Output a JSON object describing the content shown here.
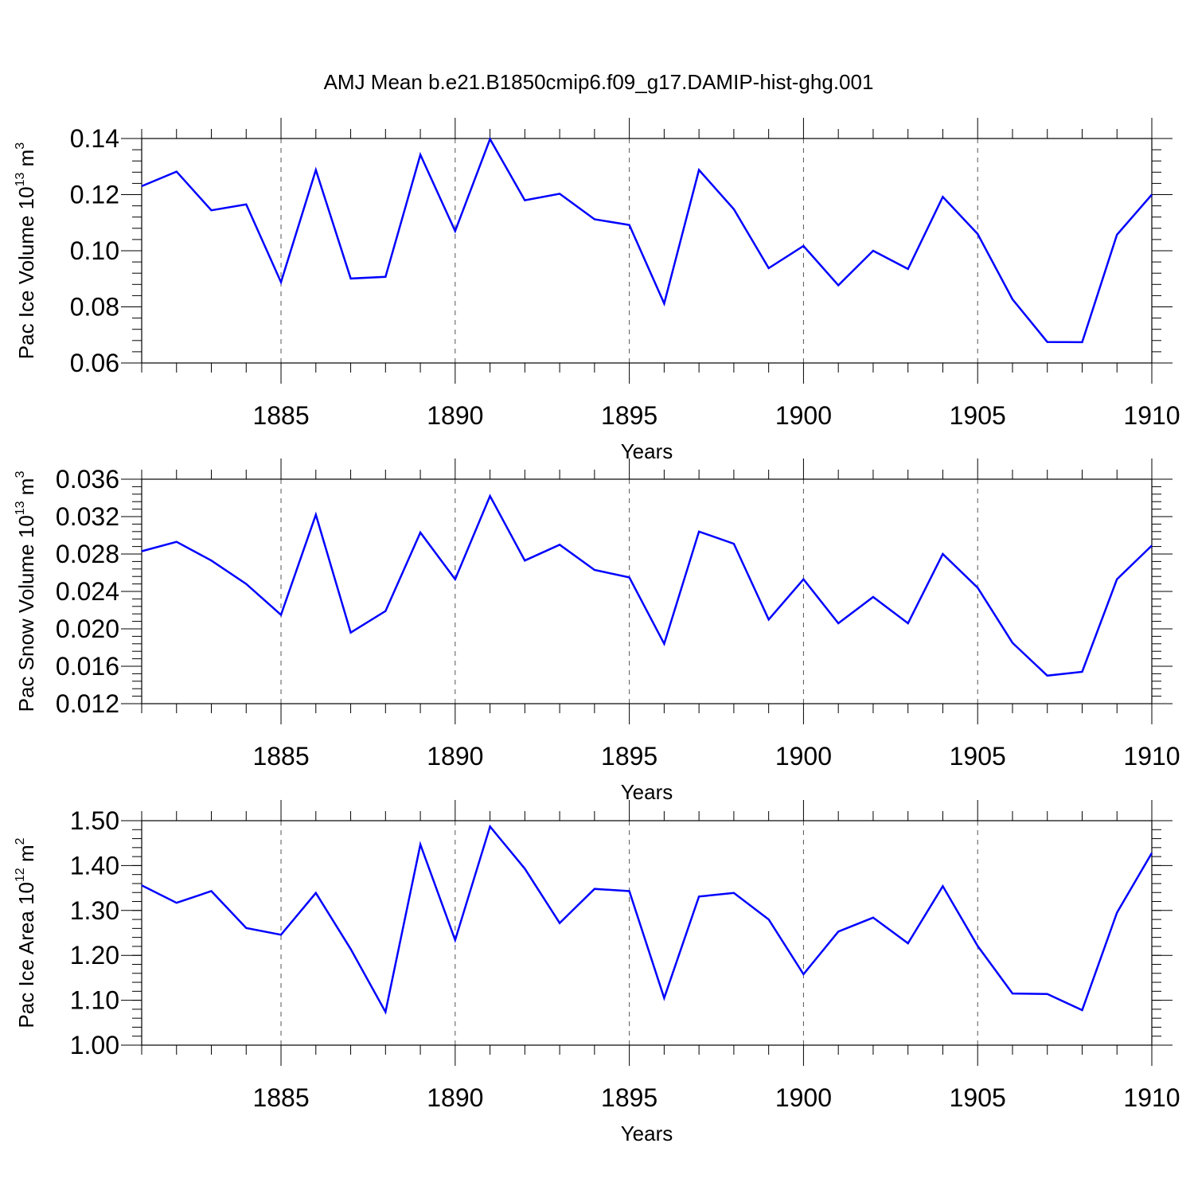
{
  "figure": {
    "title": "AMJ Mean b.e21.B1850cmip6.f09_g17.DAMIP-hist-ghg.001"
  },
  "chart_data": [
    {
      "type": "line",
      "title": "",
      "xlabel": "Years",
      "ylabel_base": "Pac Ice Volume 10",
      "ylabel_exp": "13",
      "ylabel_unit": " m",
      "ylabel_unit_exp": "3",
      "xlim": [
        1881,
        1910
      ],
      "ylim": [
        0.06,
        0.14
      ],
      "xticks": [
        1885,
        1890,
        1895,
        1900,
        1905,
        1910
      ],
      "xtick_labels": [
        "1885",
        "1890",
        "1895",
        "1900",
        "1905",
        "1910"
      ],
      "yticks": [
        0.06,
        0.08,
        0.1,
        0.12,
        0.14
      ],
      "ytick_labels": [
        "0.06",
        "0.08",
        "0.10",
        "0.12",
        "0.14"
      ],
      "grid": "vertical dashed at major x ticks",
      "line_color": "#0000ff",
      "x": [
        1881,
        1882,
        1883,
        1884,
        1885,
        1886,
        1887,
        1888,
        1889,
        1890,
        1891,
        1892,
        1893,
        1894,
        1895,
        1896,
        1897,
        1898,
        1899,
        1900,
        1901,
        1902,
        1903,
        1904,
        1905,
        1906,
        1907,
        1908,
        1909,
        1910
      ],
      "values": [
        0.123,
        0.1282,
        0.1144,
        0.1165,
        0.0888,
        0.1288,
        0.0901,
        0.0907,
        0.1342,
        0.107,
        0.1398,
        0.118,
        0.1203,
        0.1112,
        0.1092,
        0.0812,
        0.1288,
        0.1148,
        0.0938,
        0.1017,
        0.0877,
        0.1,
        0.0935,
        0.1192,
        0.106,
        0.0827,
        0.0675,
        0.0674,
        0.1057,
        0.12
      ]
    },
    {
      "type": "line",
      "title": "",
      "xlabel": "Years",
      "ylabel_base": "Pac Snow Volume 10",
      "ylabel_exp": "13",
      "ylabel_unit": " m",
      "ylabel_unit_exp": "3",
      "xlim": [
        1881,
        1910
      ],
      "ylim": [
        0.012,
        0.036
      ],
      "xticks": [
        1885,
        1890,
        1895,
        1900,
        1905,
        1910
      ],
      "xtick_labels": [
        "1885",
        "1890",
        "1895",
        "1900",
        "1905",
        "1910"
      ],
      "yticks": [
        0.012,
        0.016,
        0.02,
        0.024,
        0.028,
        0.032,
        0.036
      ],
      "ytick_labels": [
        "0.012",
        "0.016",
        "0.020",
        "0.024",
        "0.028",
        "0.032",
        "0.036"
      ],
      "grid": "vertical dashed at major x ticks",
      "line_color": "#0000ff",
      "x": [
        1881,
        1882,
        1883,
        1884,
        1885,
        1886,
        1887,
        1888,
        1889,
        1890,
        1891,
        1892,
        1893,
        1894,
        1895,
        1896,
        1897,
        1898,
        1899,
        1900,
        1901,
        1902,
        1903,
        1904,
        1905,
        1906,
        1907,
        1908,
        1909,
        1910
      ],
      "values": [
        0.0283,
        0.0293,
        0.0273,
        0.0248,
        0.0215,
        0.0322,
        0.0196,
        0.0219,
        0.0303,
        0.0253,
        0.0342,
        0.0273,
        0.029,
        0.0263,
        0.0255,
        0.0184,
        0.0304,
        0.0291,
        0.021,
        0.0253,
        0.0206,
        0.0234,
        0.0206,
        0.028,
        0.0244,
        0.0185,
        0.015,
        0.0154,
        0.0253,
        0.0289
      ]
    },
    {
      "type": "line",
      "title": "",
      "xlabel": "Years",
      "ylabel_base": "Pac Ice Area 10",
      "ylabel_exp": "12",
      "ylabel_unit": " m",
      "ylabel_unit_exp": "2",
      "xlim": [
        1881,
        1910
      ],
      "ylim": [
        1.0,
        1.5
      ],
      "xticks": [
        1885,
        1890,
        1895,
        1900,
        1905,
        1910
      ],
      "xtick_labels": [
        "1885",
        "1890",
        "1895",
        "1900",
        "1905",
        "1910"
      ],
      "yticks": [
        1.0,
        1.1,
        1.2,
        1.3,
        1.4,
        1.5
      ],
      "ytick_labels": [
        "1.00",
        "1.10",
        "1.20",
        "1.30",
        "1.40",
        "1.50"
      ],
      "grid": "vertical dashed at major x ticks",
      "line_color": "#0000ff",
      "x": [
        1881,
        1882,
        1883,
        1884,
        1885,
        1886,
        1887,
        1888,
        1889,
        1890,
        1891,
        1892,
        1893,
        1894,
        1895,
        1896,
        1897,
        1898,
        1899,
        1900,
        1901,
        1902,
        1903,
        1904,
        1905,
        1906,
        1907,
        1908,
        1909,
        1910
      ],
      "values": [
        1.356,
        1.317,
        1.343,
        1.261,
        1.246,
        1.339,
        1.214,
        1.074,
        1.447,
        1.234,
        1.487,
        1.393,
        1.272,
        1.348,
        1.343,
        1.105,
        1.331,
        1.339,
        1.28,
        1.158,
        1.253,
        1.284,
        1.227,
        1.354,
        1.221,
        1.115,
        1.114,
        1.078,
        1.295,
        1.428
      ]
    }
  ]
}
